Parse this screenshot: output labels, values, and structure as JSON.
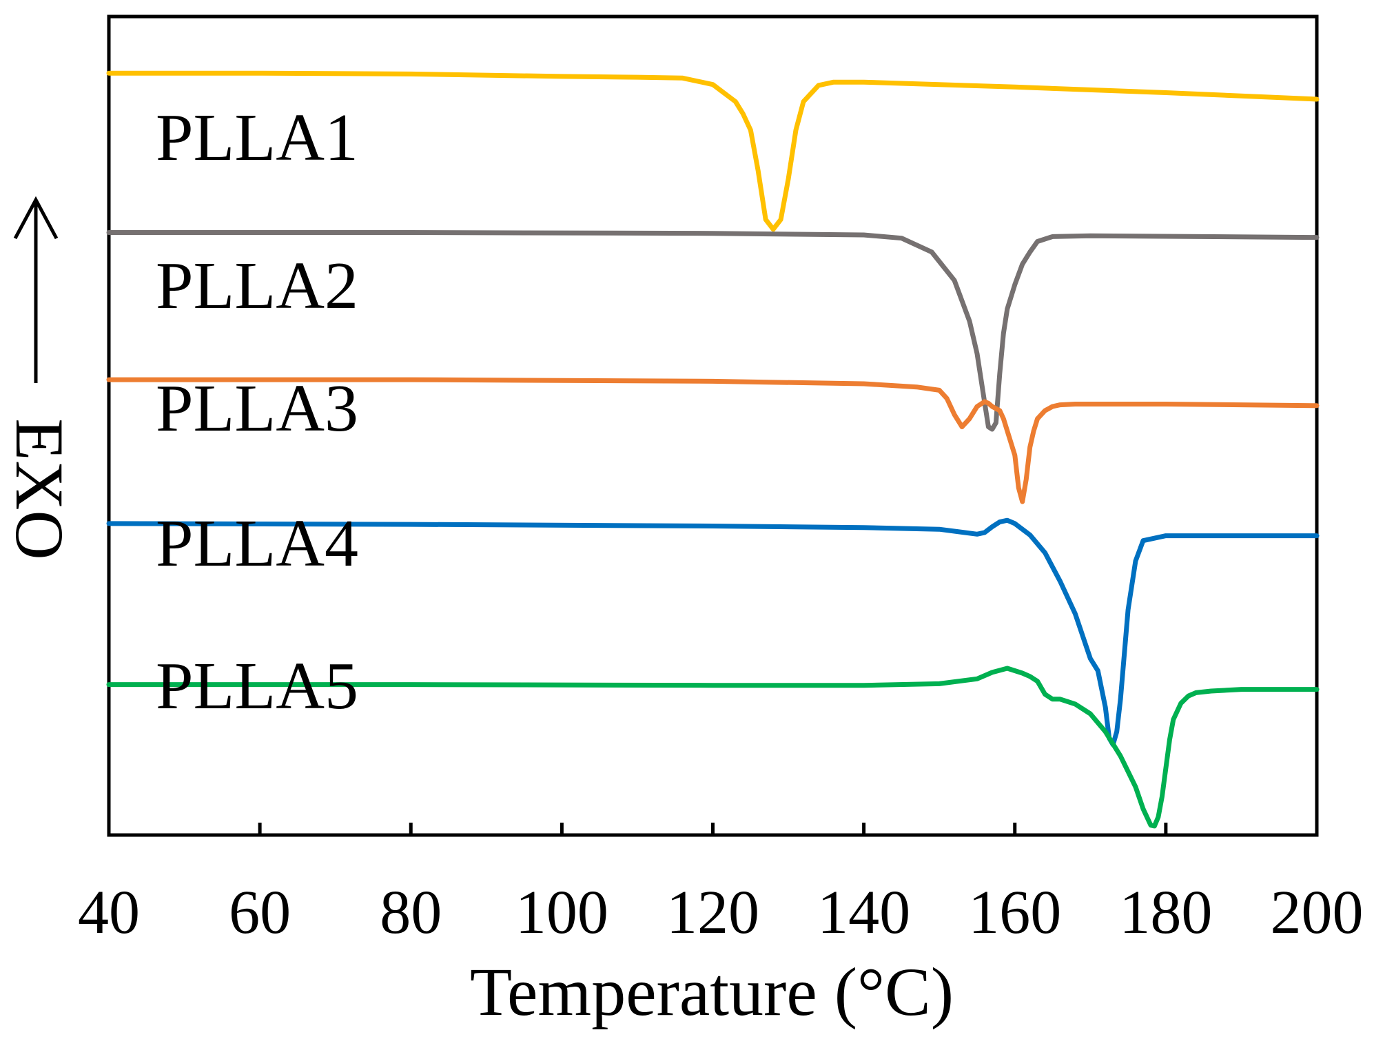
{
  "chart_data": {
    "type": "line",
    "title": "",
    "xlabel": "Temperature (°C)",
    "ylabel": "EXO",
    "ylabel_arrow": "up",
    "xlim": [
      40,
      200
    ],
    "xticks": [
      40,
      60,
      80,
      100,
      120,
      140,
      160,
      180,
      200
    ],
    "xtick_labels": [
      "40",
      "60",
      "80",
      "100",
      "120",
      "140",
      "160",
      "180",
      "200"
    ],
    "ylim": [
      0,
      100
    ],
    "y_ticks_shown": false,
    "grid": false,
    "legend": "inline labels",
    "y_units": "arbitrary (stacked DSC heat flow curves, exothermic up)",
    "series": [
      {
        "name": "PLLA1",
        "color": "#FFC000",
        "x": [
          40,
          60,
          80,
          100,
          110,
          116,
          120,
          123,
          124,
          125,
          126,
          127,
          128,
          129,
          130,
          131,
          132,
          134,
          136,
          140,
          160,
          180,
          200
        ],
        "y": [
          91.0,
          91.0,
          90.9,
          90.6,
          90.5,
          90.4,
          89.6,
          87.5,
          86.0,
          84.0,
          79.0,
          73.0,
          71.8,
          73.0,
          78.0,
          84.0,
          87.5,
          89.5,
          89.9,
          89.9,
          89.3,
          88.6,
          87.8
        ]
      },
      {
        "name": "PLLA2",
        "color": "#767171",
        "x": [
          40,
          80,
          120,
          140,
          145,
          149,
          152,
          154,
          155,
          156,
          156.5,
          157,
          157.5,
          158,
          158.5,
          159,
          160,
          161,
          162,
          163,
          165,
          170,
          200
        ],
        "y": [
          71.4,
          71.4,
          71.3,
          71.1,
          70.7,
          69.0,
          65.5,
          60.5,
          56.5,
          50.5,
          47.5,
          47.2,
          48.0,
          54.0,
          59.0,
          62.0,
          65.0,
          67.5,
          69.0,
          70.3,
          70.9,
          71.0,
          70.8
        ]
      },
      {
        "name": "PLLA3",
        "color": "#ED7D31",
        "x": [
          40,
          80,
          120,
          140,
          147,
          150,
          151,
          152,
          153,
          154,
          155,
          156,
          156.5,
          157,
          158,
          158.5,
          159,
          160,
          160.5,
          161,
          161.5,
          162,
          162.5,
          163,
          164,
          165,
          166,
          168,
          180,
          200
        ],
        "y": [
          53.3,
          53.3,
          53.1,
          52.8,
          52.4,
          52.0,
          51.0,
          49.0,
          47.5,
          48.5,
          50.0,
          50.6,
          50.4,
          50.0,
          49.5,
          48.5,
          47.0,
          44.0,
          40.0,
          38.3,
          41.0,
          45.0,
          47.0,
          48.5,
          49.5,
          50.0,
          50.2,
          50.3,
          50.3,
          50.1
        ]
      },
      {
        "name": "PLLA4",
        "color": "#0070C0",
        "x": [
          40,
          80,
          120,
          140,
          150,
          155,
          156,
          157,
          158,
          159,
          160,
          162,
          164,
          166,
          168,
          170,
          171,
          172,
          172.5,
          173,
          173.5,
          174,
          174.5,
          175,
          176,
          177,
          180,
          200
        ],
        "y": [
          35.6,
          35.5,
          35.3,
          35.1,
          34.9,
          34.3,
          34.5,
          35.2,
          35.8,
          36.0,
          35.6,
          34.2,
          32.0,
          28.5,
          24.5,
          19.0,
          17.5,
          13.0,
          9.2,
          8.4,
          10.0,
          14.0,
          19.5,
          25.0,
          31.0,
          33.5,
          34.1,
          34.1
        ]
      },
      {
        "name": "PLLA5",
        "color": "#00B050",
        "x": [
          40,
          80,
          120,
          140,
          150,
          155,
          157,
          159,
          161,
          162,
          163,
          164,
          165,
          166,
          168,
          170,
          172,
          174,
          176,
          177,
          178,
          178.5,
          179,
          179.5,
          180,
          180.5,
          181,
          182,
          183,
          184,
          186,
          190,
          200
        ],
        "y": [
          15.8,
          15.8,
          15.7,
          15.7,
          15.9,
          16.5,
          17.3,
          17.8,
          17.2,
          16.8,
          16.2,
          14.6,
          14.0,
          14.0,
          13.4,
          12.2,
          10.0,
          7.0,
          3.2,
          0.5,
          -1.5,
          -1.6,
          -0.5,
          2.0,
          5.5,
          9.0,
          11.5,
          13.5,
          14.4,
          14.8,
          15.0,
          15.2,
          15.2
        ]
      }
    ],
    "series_labels": [
      "PLLA1",
      "PLLA2",
      "PLLA3",
      "PLLA4",
      "PLLA5"
    ]
  }
}
